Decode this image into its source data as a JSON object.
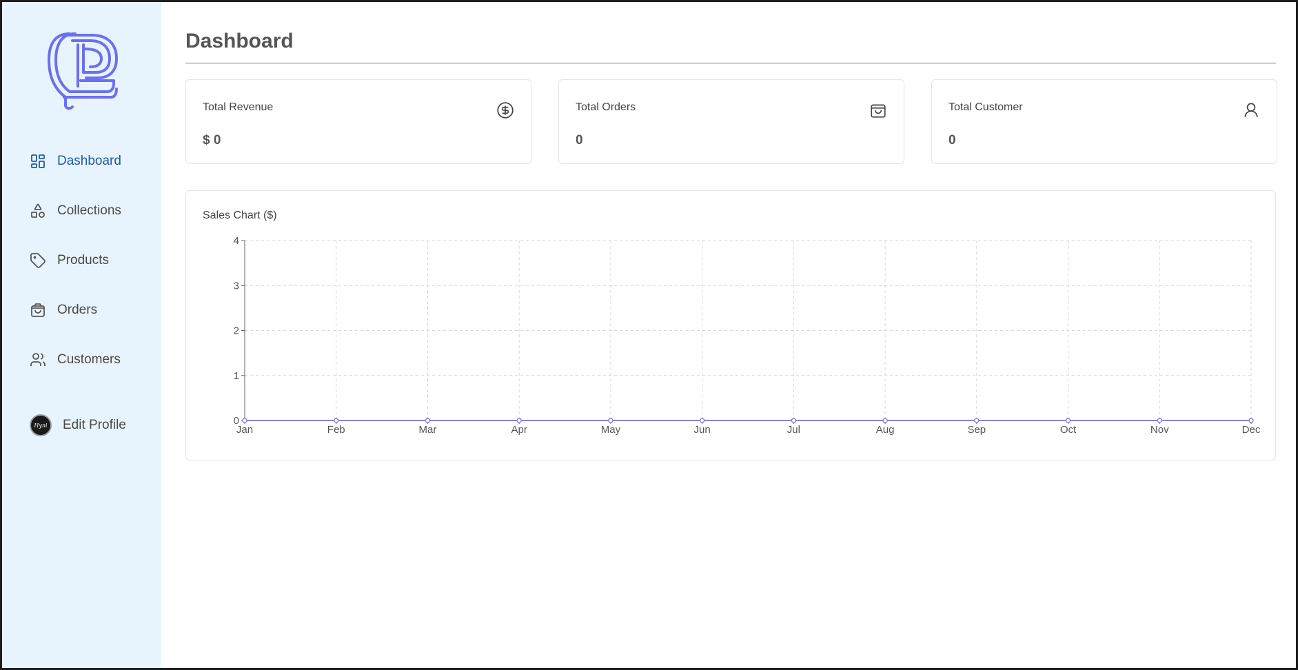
{
  "sidebar": {
    "items": [
      {
        "label": "Dashboard",
        "icon": "dashboard-icon",
        "active": true
      },
      {
        "label": "Collections",
        "icon": "shapes-icon"
      },
      {
        "label": "Products",
        "icon": "tag-icon"
      },
      {
        "label": "Orders",
        "icon": "shopping-bag-icon"
      },
      {
        "label": "Customers",
        "icon": "users-icon"
      }
    ],
    "profile": {
      "label": "Edit Profile",
      "avatar_text": "Hyni"
    }
  },
  "header": {
    "title": "Dashboard"
  },
  "stats": [
    {
      "label": "Total Revenue",
      "value": "$ 0",
      "icon": "dollar-circle-icon"
    },
    {
      "label": "Total Orders",
      "value": "0",
      "icon": "shopping-bag-icon"
    },
    {
      "label": "Total Customer",
      "value": "0",
      "icon": "user-icon"
    }
  ],
  "chart": {
    "title": "Sales Chart ($)"
  },
  "colors": {
    "sidebar_bg": "#e8f4fd",
    "active_nav": "#1f5aa6",
    "logo": "#6b6ff0",
    "series_line": "#8884d8"
  },
  "chart_data": {
    "type": "line",
    "title": "Sales Chart ($)",
    "categories": [
      "Jan",
      "Feb",
      "Mar",
      "Apr",
      "May",
      "Jun",
      "Jul",
      "Aug",
      "Sep",
      "Oct",
      "Nov",
      "Dec"
    ],
    "values": [
      0,
      0,
      0,
      0,
      0,
      0,
      0,
      0,
      0,
      0,
      0,
      0
    ],
    "yticks": [
      0,
      1,
      2,
      3,
      4
    ],
    "ylim": [
      0,
      4
    ],
    "grid": true,
    "xlabel": "",
    "ylabel": ""
  }
}
